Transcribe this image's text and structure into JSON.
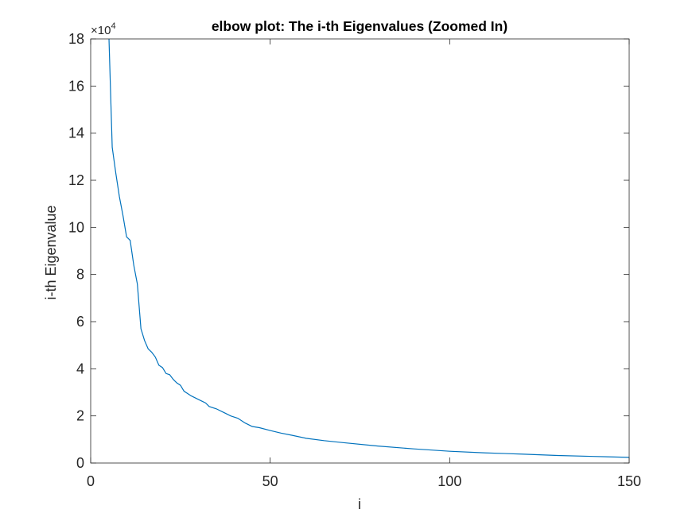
{
  "chart_data": {
    "type": "line",
    "title": "elbow plot: The i-th Eigenvalues (Zoomed In)",
    "xlabel": "i",
    "ylabel": "i-th Eigenvalue",
    "y_exponent_label": "×10",
    "y_exponent_power": "4",
    "y_multiplier": 10000,
    "xlim": [
      0,
      150
    ],
    "ylim": [
      0,
      18
    ],
    "x_ticks": [
      0,
      50,
      100,
      150
    ],
    "y_ticks": [
      0,
      2,
      4,
      6,
      8,
      10,
      12,
      14,
      16,
      18
    ],
    "grid": false,
    "box": true,
    "line_color": "#0072BD",
    "series": [
      {
        "x": [
          5,
          6,
          7,
          8,
          9,
          10,
          11,
          12,
          13,
          14,
          15,
          16,
          17,
          18,
          19,
          20,
          21,
          22,
          23,
          24,
          25,
          26,
          28,
          30,
          32,
          33,
          35,
          37,
          39,
          41,
          43,
          45,
          47,
          50,
          53,
          56,
          60,
          65,
          70,
          80,
          90,
          100,
          110,
          120,
          130,
          140,
          150
        ],
        "values": [
          18.5,
          13.4,
          12.3,
          11.3,
          10.5,
          9.6,
          9.45,
          8.4,
          7.6,
          5.7,
          5.2,
          4.85,
          4.7,
          4.5,
          4.15,
          4.05,
          3.8,
          3.75,
          3.55,
          3.4,
          3.3,
          3.05,
          2.85,
          2.7,
          2.55,
          2.4,
          2.3,
          2.15,
          2.0,
          1.9,
          1.7,
          1.55,
          1.5,
          1.38,
          1.27,
          1.18,
          1.05,
          0.95,
          0.87,
          0.72,
          0.6,
          0.5,
          0.43,
          0.38,
          0.32,
          0.28,
          0.24
        ]
      }
    ]
  }
}
